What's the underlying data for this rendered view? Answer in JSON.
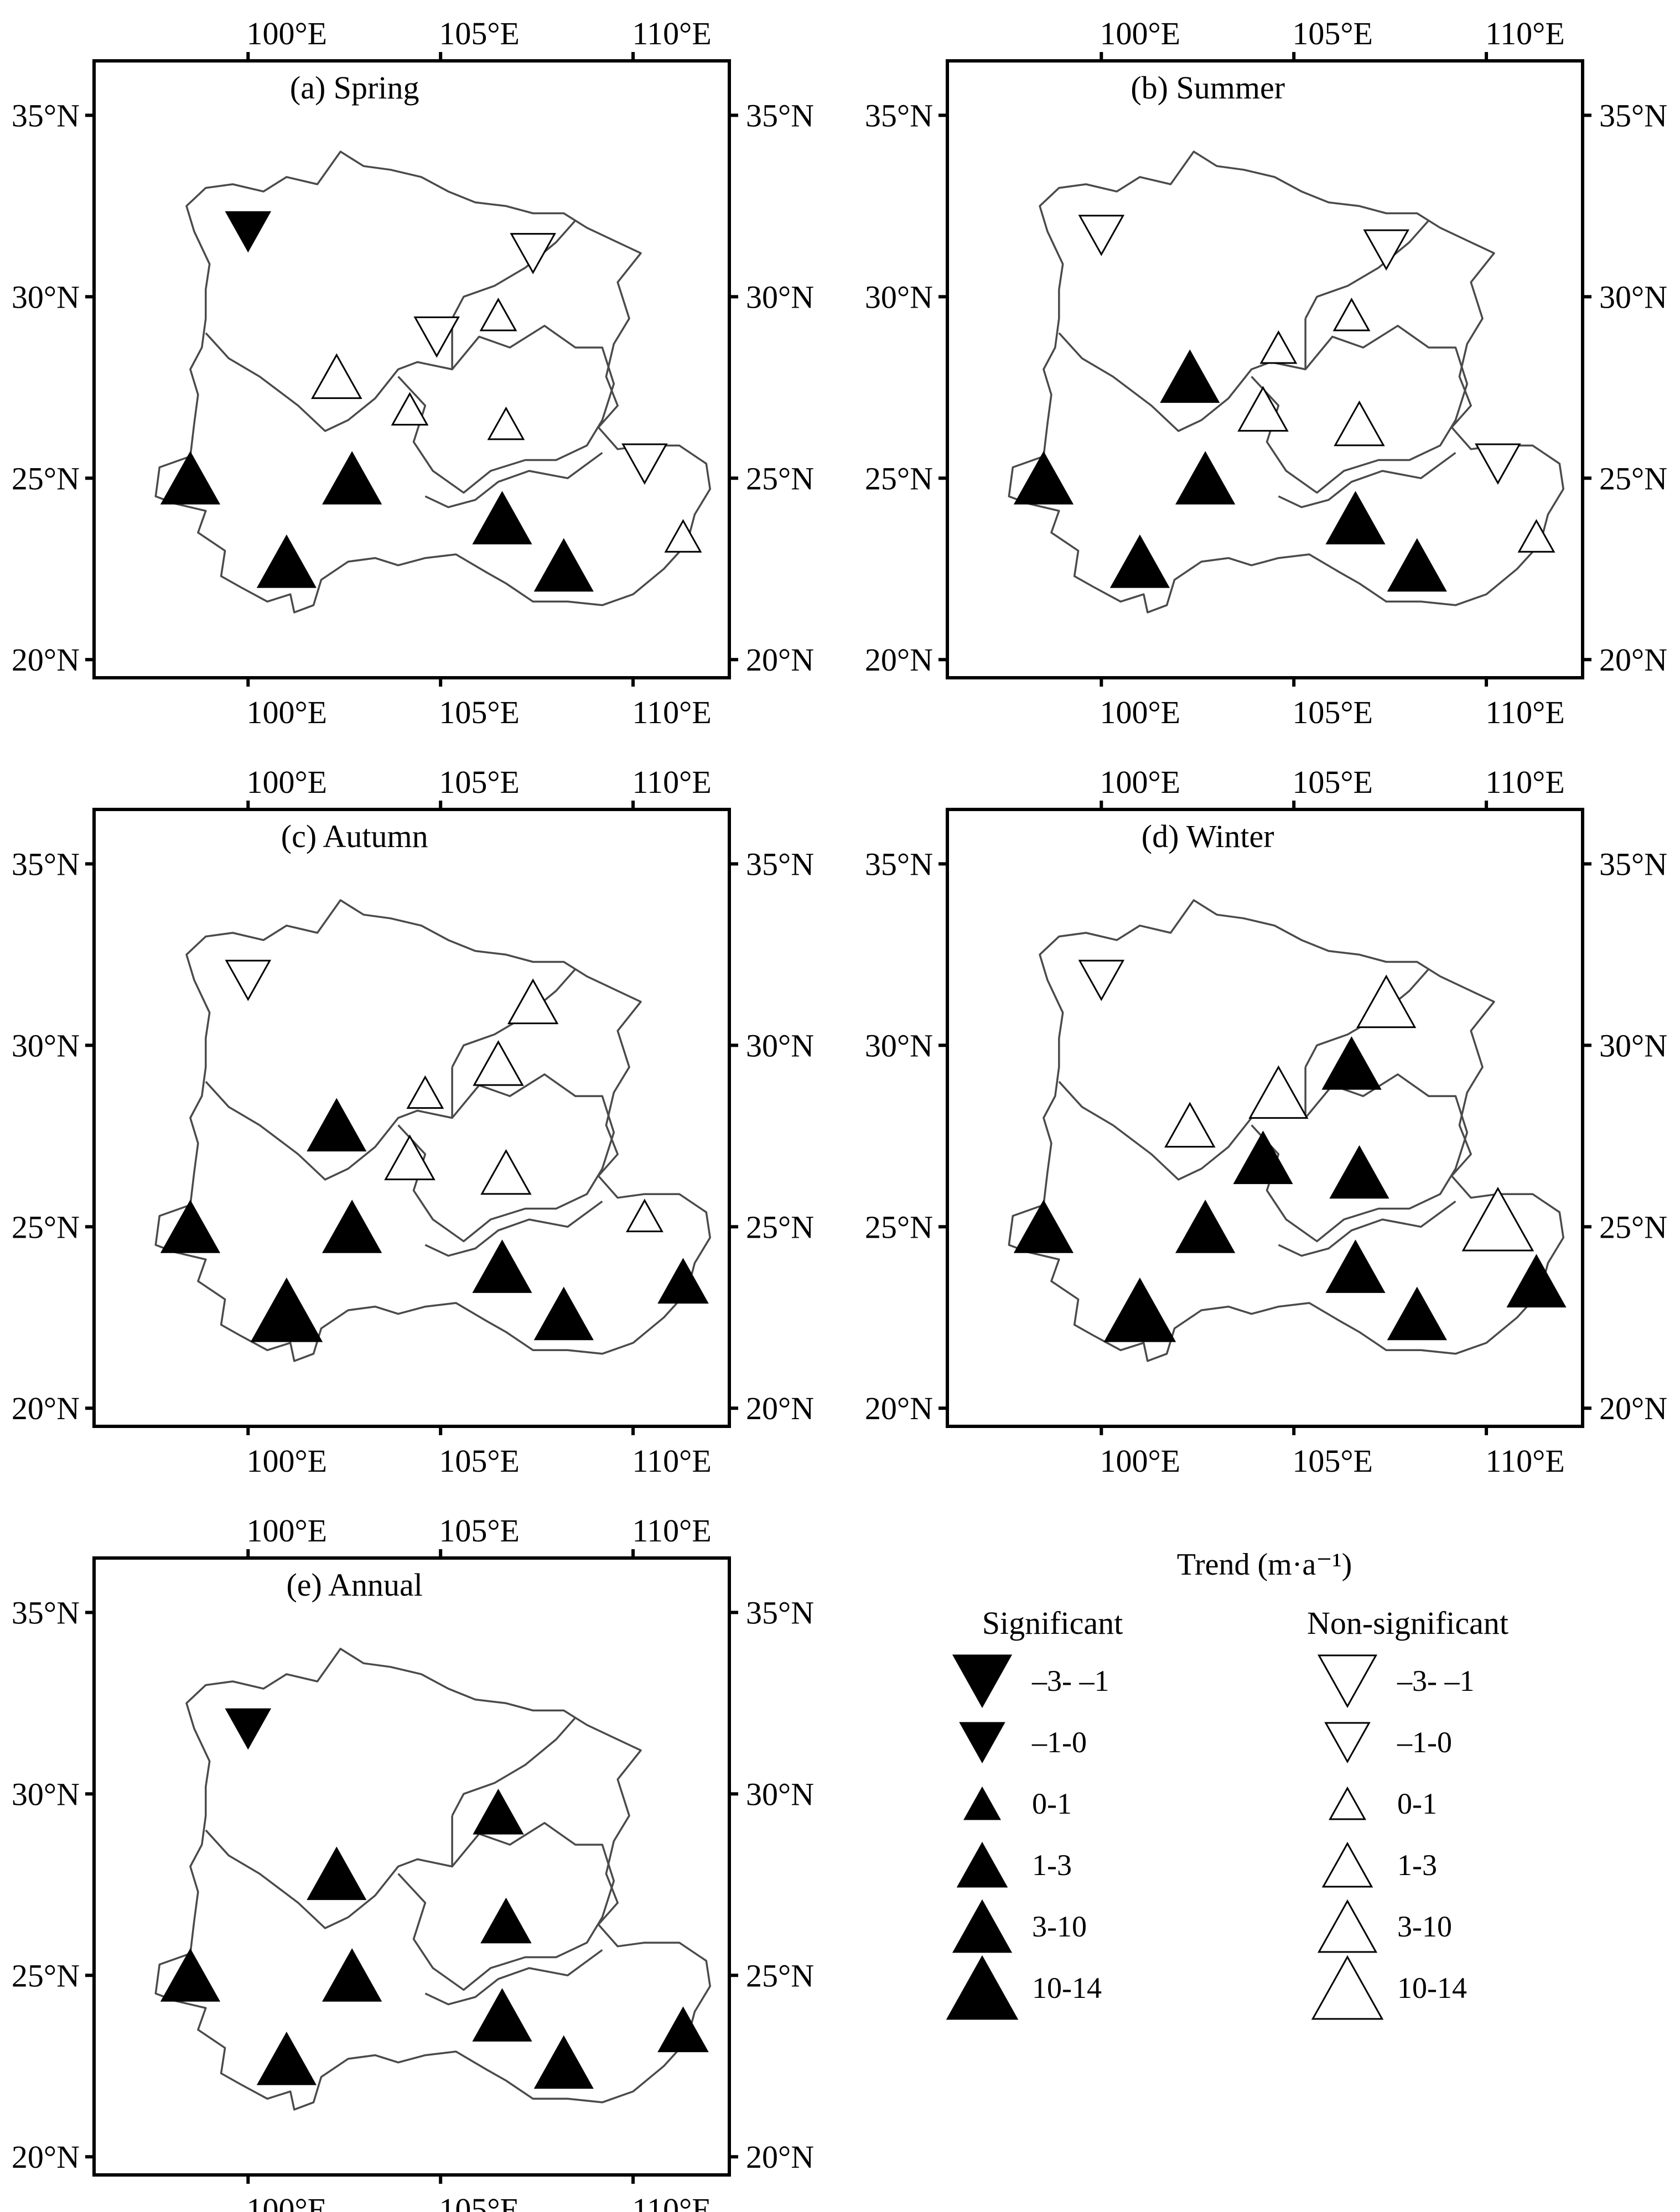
{
  "figure": {
    "lon_ticks": [
      "100°E",
      "105°E",
      "110°E"
    ],
    "lat_ticks": [
      "35°N",
      "30°N",
      "25°N",
      "20°N"
    ],
    "lon_range": [
      96,
      112.5
    ],
    "lat_range": [
      19.5,
      36.5
    ]
  },
  "symbol_classes": [
    "-3- -1",
    "-1-0",
    "0-1",
    "1-3",
    "3-10",
    "10-14"
  ],
  "symbol_colors": {
    "significant": "#000000",
    "non_significant": "#ffffff"
  },
  "panels": [
    {
      "title": "(a) Spring",
      "stations": [
        {
          "lon": 100.0,
          "lat": 31.8,
          "cls": 1,
          "sig": true
        },
        {
          "lon": 107.4,
          "lat": 31.2,
          "cls": 1,
          "sig": false
        },
        {
          "lon": 104.9,
          "lat": 28.9,
          "cls": 1,
          "sig": false
        },
        {
          "lon": 106.5,
          "lat": 29.5,
          "cls": 2,
          "sig": false
        },
        {
          "lon": 102.3,
          "lat": 27.8,
          "cls": 3,
          "sig": false
        },
        {
          "lon": 104.2,
          "lat": 26.9,
          "cls": 2,
          "sig": false
        },
        {
          "lon": 106.7,
          "lat": 26.5,
          "cls": 2,
          "sig": false
        },
        {
          "lon": 110.3,
          "lat": 25.4,
          "cls": 1,
          "sig": false
        },
        {
          "lon": 98.5,
          "lat": 25.0,
          "cls": 4,
          "sig": true
        },
        {
          "lon": 102.7,
          "lat": 25.0,
          "cls": 4,
          "sig": true
        },
        {
          "lon": 106.6,
          "lat": 23.9,
          "cls": 4,
          "sig": true
        },
        {
          "lon": 111.3,
          "lat": 23.4,
          "cls": 2,
          "sig": false
        },
        {
          "lon": 101.0,
          "lat": 22.7,
          "cls": 4,
          "sig": true
        },
        {
          "lon": 108.2,
          "lat": 22.6,
          "cls": 4,
          "sig": true
        }
      ]
    },
    {
      "title": "(b) Summer",
      "stations": [
        {
          "lon": 100.0,
          "lat": 31.7,
          "cls": 1,
          "sig": false
        },
        {
          "lon": 107.4,
          "lat": 31.3,
          "cls": 1,
          "sig": false
        },
        {
          "lon": 106.5,
          "lat": 29.5,
          "cls": 2,
          "sig": false
        },
        {
          "lon": 104.6,
          "lat": 28.6,
          "cls": 2,
          "sig": false
        },
        {
          "lon": 102.3,
          "lat": 27.8,
          "cls": 4,
          "sig": true
        },
        {
          "lon": 104.2,
          "lat": 26.9,
          "cls": 3,
          "sig": false
        },
        {
          "lon": 106.7,
          "lat": 26.5,
          "cls": 3,
          "sig": false
        },
        {
          "lon": 110.3,
          "lat": 25.4,
          "cls": 1,
          "sig": false
        },
        {
          "lon": 98.5,
          "lat": 25.0,
          "cls": 4,
          "sig": true
        },
        {
          "lon": 102.7,
          "lat": 25.0,
          "cls": 4,
          "sig": true
        },
        {
          "lon": 106.6,
          "lat": 23.9,
          "cls": 4,
          "sig": true
        },
        {
          "lon": 111.3,
          "lat": 23.4,
          "cls": 2,
          "sig": false
        },
        {
          "lon": 101.0,
          "lat": 22.7,
          "cls": 4,
          "sig": true
        },
        {
          "lon": 108.2,
          "lat": 22.6,
          "cls": 4,
          "sig": true
        }
      ]
    },
    {
      "title": "(c) Autumn",
      "stations": [
        {
          "lon": 100.0,
          "lat": 31.8,
          "cls": 1,
          "sig": false
        },
        {
          "lon": 107.4,
          "lat": 31.2,
          "cls": 3,
          "sig": false
        },
        {
          "lon": 106.5,
          "lat": 29.5,
          "cls": 3,
          "sig": false
        },
        {
          "lon": 104.6,
          "lat": 28.7,
          "cls": 2,
          "sig": false
        },
        {
          "lon": 102.3,
          "lat": 27.8,
          "cls": 4,
          "sig": true
        },
        {
          "lon": 104.2,
          "lat": 26.9,
          "cls": 3,
          "sig": false
        },
        {
          "lon": 106.7,
          "lat": 26.5,
          "cls": 3,
          "sig": false
        },
        {
          "lon": 110.3,
          "lat": 25.3,
          "cls": 2,
          "sig": false
        },
        {
          "lon": 98.5,
          "lat": 25.0,
          "cls": 4,
          "sig": true
        },
        {
          "lon": 102.7,
          "lat": 25.0,
          "cls": 4,
          "sig": true
        },
        {
          "lon": 106.6,
          "lat": 23.9,
          "cls": 4,
          "sig": true
        },
        {
          "lon": 111.3,
          "lat": 23.5,
          "cls": 3,
          "sig": true
        },
        {
          "lon": 101.0,
          "lat": 22.7,
          "cls": 5,
          "sig": true
        },
        {
          "lon": 108.2,
          "lat": 22.6,
          "cls": 4,
          "sig": true
        }
      ]
    },
    {
      "title": "(d) Winter",
      "stations": [
        {
          "lon": 100.0,
          "lat": 31.8,
          "cls": 1,
          "sig": false
        },
        {
          "lon": 107.4,
          "lat": 31.2,
          "cls": 4,
          "sig": false
        },
        {
          "lon": 106.5,
          "lat": 29.5,
          "cls": 4,
          "sig": true
        },
        {
          "lon": 104.6,
          "lat": 28.7,
          "cls": 4,
          "sig": false
        },
        {
          "lon": 102.3,
          "lat": 27.8,
          "cls": 3,
          "sig": false
        },
        {
          "lon": 104.2,
          "lat": 26.9,
          "cls": 4,
          "sig": true
        },
        {
          "lon": 106.7,
          "lat": 26.5,
          "cls": 4,
          "sig": true
        },
        {
          "lon": 110.3,
          "lat": 25.2,
          "cls": 5,
          "sig": false
        },
        {
          "lon": 98.5,
          "lat": 25.0,
          "cls": 4,
          "sig": true
        },
        {
          "lon": 102.7,
          "lat": 25.0,
          "cls": 4,
          "sig": true
        },
        {
          "lon": 106.6,
          "lat": 23.9,
          "cls": 4,
          "sig": true
        },
        {
          "lon": 111.3,
          "lat": 23.5,
          "cls": 4,
          "sig": true
        },
        {
          "lon": 101.0,
          "lat": 22.7,
          "cls": 5,
          "sig": true
        },
        {
          "lon": 108.2,
          "lat": 22.6,
          "cls": 4,
          "sig": true
        }
      ]
    },
    {
      "title": "(e) Annual",
      "stations": [
        {
          "lon": 100.0,
          "lat": 31.8,
          "cls": 1,
          "sig": true
        },
        {
          "lon": 106.5,
          "lat": 29.5,
          "cls": 3,
          "sig": true
        },
        {
          "lon": 102.3,
          "lat": 27.8,
          "cls": 4,
          "sig": true
        },
        {
          "lon": 106.7,
          "lat": 26.5,
          "cls": 3,
          "sig": true
        },
        {
          "lon": 98.5,
          "lat": 25.0,
          "cls": 4,
          "sig": true
        },
        {
          "lon": 102.7,
          "lat": 25.0,
          "cls": 4,
          "sig": true
        },
        {
          "lon": 106.6,
          "lat": 23.9,
          "cls": 4,
          "sig": true
        },
        {
          "lon": 111.3,
          "lat": 23.5,
          "cls": 3,
          "sig": true
        },
        {
          "lon": 101.0,
          "lat": 22.7,
          "cls": 4,
          "sig": true
        },
        {
          "lon": 108.2,
          "lat": 22.6,
          "cls": 4,
          "sig": true
        }
      ]
    }
  ],
  "legend": {
    "title": "Trend (m·a⁻¹)",
    "significant_header": "Significant",
    "non_significant_header": "Non-significant",
    "items": [
      "–3- –1",
      "–1-0",
      "0-1",
      "1-3",
      "3-10",
      "10-14"
    ]
  }
}
